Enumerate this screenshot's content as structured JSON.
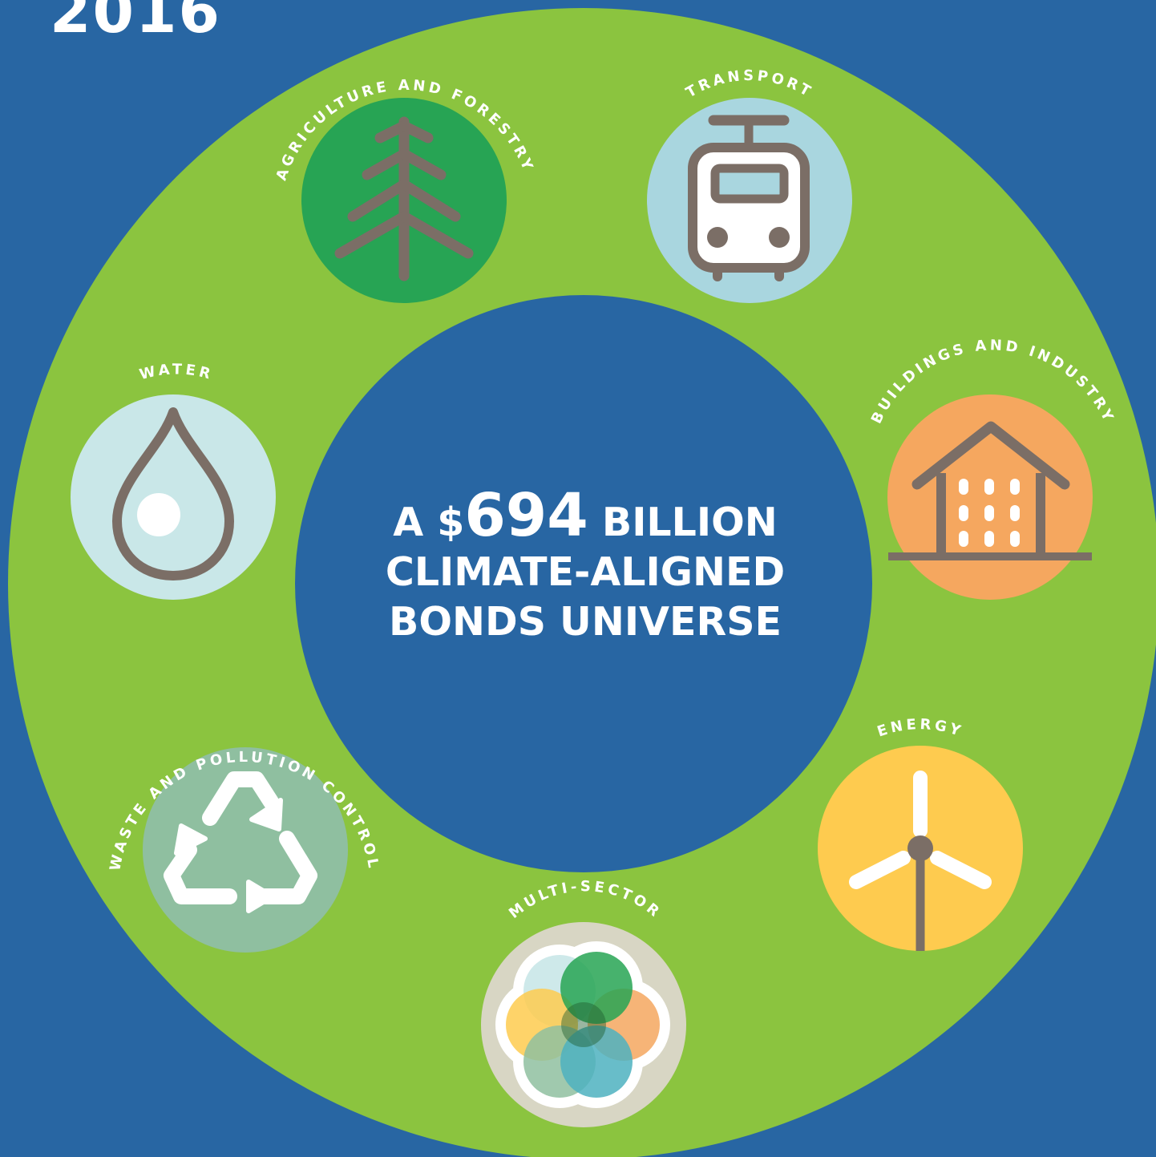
{
  "year": "2016",
  "headline": {
    "prefix": "A $",
    "amount": "694",
    "suffix": " BILLION",
    "line2": "CLIMATE-ALIGNED",
    "line3": "BONDS UNIVERSE"
  },
  "sectors": {
    "agriculture": "AGRICULTURE AND FORESTRY",
    "transport": "TRANSPORT",
    "buildings": "BUILDINGS AND INDUSTRY",
    "energy": "ENERGY",
    "multi": "MULTI-SECTOR",
    "waste": "WASTE AND POLLUTION CONTROL",
    "water": "WATER"
  },
  "icons": {
    "agriculture": "tree-icon",
    "transport": "tram-icon",
    "buildings": "building-icon",
    "energy": "wind-turbine-icon",
    "multi": "overlapping-circles-icon",
    "waste": "recycle-icon",
    "water": "water-drop-icon"
  },
  "colors": {
    "background": "#2866a3",
    "ring": "#8bc43f",
    "agriculture": "#27a454",
    "transport": "#a9d6df",
    "buildings": "#f5a75f",
    "energy": "#fecb4f",
    "multi": "#d8d6c4",
    "waste": "#8fbfa0",
    "water": "#c9e7e8",
    "icon_line": "#7b6e66"
  }
}
